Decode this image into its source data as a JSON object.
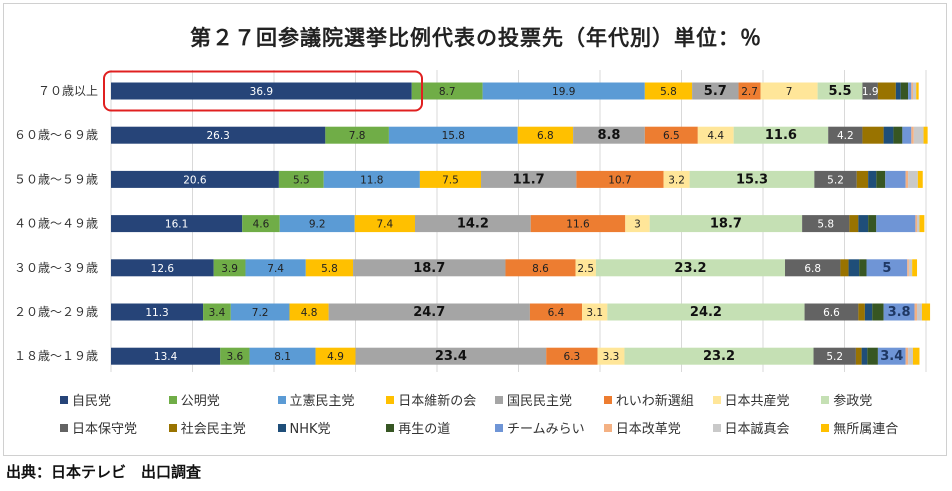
{
  "title": "第２７回参議院選挙比例代表の投票先（年代別）単位：％",
  "source": "出典：日本テレビ　出口調査",
  "colors": {
    "highlight": "#e02020",
    "grid": "#d9d9d9"
  },
  "chart_data": {
    "type": "bar",
    "orientation": "horizontal",
    "stacked": true,
    "title": "第２７回参議院選挙比例代表の投票先（年代別）単位：％",
    "xlim": [
      0,
      100
    ],
    "grid": true,
    "legend_position": "bottom",
    "highlighted_category": "７０歳以上",
    "categories": [
      "７０歳以上",
      "６０歳～６９歳",
      "５０歳～５９歳",
      "４０歳～４９歳",
      "３０歳～３９歳",
      "２０歳～２９歳",
      "１８歳～１９歳"
    ],
    "series": [
      {
        "name": "自民党",
        "color": "#264478",
        "label_color": "#ffffff",
        "values": [
          36.9,
          26.3,
          20.6,
          16.1,
          12.6,
          11.3,
          13.4
        ],
        "labels": [
          "36.9",
          "26.3",
          "20.6",
          "16.1",
          "12.6",
          "11.3",
          "13.4"
        ]
      },
      {
        "name": "公明党",
        "color": "#70ad47",
        "label_color": "#222222",
        "values": [
          8.7,
          7.8,
          5.5,
          4.6,
          3.9,
          3.4,
          3.6
        ],
        "labels": [
          "8.7",
          "7.8",
          "5.5",
          "4.6",
          "3.9",
          "3.4",
          "3.6"
        ]
      },
      {
        "name": "立憲民主党",
        "color": "#5b9bd5",
        "label_color": "#222222",
        "values": [
          19.9,
          15.8,
          11.8,
          9.2,
          7.4,
          7.2,
          8.1
        ],
        "labels": [
          "19.9",
          "15.8",
          "11.8",
          "9.2",
          "7.4",
          "7.2",
          "8.1"
        ]
      },
      {
        "name": "日本維新の会",
        "color": "#ffc000",
        "label_color": "#222222",
        "values": [
          5.8,
          6.8,
          7.5,
          7.4,
          5.8,
          4.8,
          4.9
        ],
        "labels": [
          "5.8",
          "6.8",
          "7.5",
          "7.4",
          "5.8",
          "4.8",
          "4.9"
        ]
      },
      {
        "name": "国民民主党",
        "color": "#a5a5a5",
        "label_color": "#111111",
        "bold": true,
        "values": [
          5.7,
          8.8,
          11.7,
          14.2,
          18.7,
          24.7,
          23.4
        ],
        "labels": [
          "5.7",
          "8.8",
          "11.7",
          "14.2",
          "18.7",
          "24.7",
          "23.4"
        ]
      },
      {
        "name": "れいわ新選組",
        "color": "#ed7d31",
        "label_color": "#222222",
        "values": [
          2.7,
          6.5,
          10.7,
          11.6,
          8.6,
          6.4,
          6.3
        ],
        "labels": [
          "2.7",
          "6.5",
          "10.7",
          "11.6",
          "8.6",
          "6.4",
          "6.3"
        ]
      },
      {
        "name": "日本共産党",
        "color": "#ffe699",
        "label_color": "#222222",
        "values": [
          7,
          4.4,
          3.2,
          3,
          2.5,
          3.1,
          3.3
        ],
        "labels": [
          "7",
          "4.4",
          "3.2",
          "3",
          "2.5",
          "3.1",
          "3.3"
        ]
      },
      {
        "name": "参政党",
        "color": "#c5e0b4",
        "label_color": "#111111",
        "bold": true,
        "values": [
          5.5,
          11.6,
          15.3,
          18.7,
          23.2,
          24.2,
          23.2
        ],
        "labels": [
          "5.5",
          "11.6",
          "15.3",
          "18.7",
          "23.2",
          "24.2",
          "23.2"
        ]
      },
      {
        "name": "日本保守党",
        "color": "#636363",
        "label_color": "#ffffff",
        "values": [
          1.9,
          4.2,
          5.2,
          5.8,
          6.8,
          6.6,
          5.2
        ],
        "labels": [
          "1.9",
          "4.2",
          "5.2",
          "5.8",
          "6.8",
          "6.6",
          "5.2"
        ]
      },
      {
        "name": "社会民主党",
        "color": "#997300",
        "label_color": "#ffffff",
        "values": [
          2.2,
          2.6,
          1.4,
          1.1,
          1.0,
          0.8,
          0.7
        ],
        "labels": [
          "",
          "",
          "",
          "",
          "",
          "",
          ""
        ]
      },
      {
        "name": "NHK党",
        "color": "#1f4e79",
        "label_color": "#ffffff",
        "values": [
          0.6,
          1.2,
          1.0,
          1.2,
          1.3,
          0.9,
          0.7
        ],
        "labels": [
          "",
          "",
          "",
          "",
          "",
          "",
          ""
        ]
      },
      {
        "name": "再生の道",
        "color": "#375623",
        "label_color": "#ffffff",
        "values": [
          0.9,
          1.1,
          1.1,
          1.0,
          0.9,
          1.4,
          1.3
        ],
        "labels": [
          "",
          "",
          "",
          "",
          "",
          "",
          ""
        ]
      },
      {
        "name": "チームみらい",
        "color": "#6f95d6",
        "label_color": "#1f3864",
        "bold": true,
        "values": [
          0.4,
          1.1,
          2.5,
          4.8,
          5,
          3.8,
          3.4
        ],
        "labels": [
          "",
          "",
          "",
          "",
          "5",
          "3.8",
          "3.4"
        ]
      },
      {
        "name": "日本改革党",
        "color": "#f4b183",
        "label_color": "#222222",
        "values": [
          0.2,
          0.3,
          0.3,
          0.2,
          0.2,
          0.3,
          0.3
        ],
        "labels": [
          "",
          "",
          "",
          "",
          "",
          "",
          ""
        ]
      },
      {
        "name": "日本誠真会",
        "color": "#c9c9c9",
        "label_color": "#222222",
        "values": [
          0.4,
          1.2,
          1.2,
          0.3,
          0.4,
          0.6,
          0.6
        ],
        "labels": [
          "",
          "",
          "",
          "",
          "",
          "",
          ""
        ]
      },
      {
        "name": "無所属連合",
        "color": "#ffc000",
        "label_color": "#222222",
        "values": [
          0.3,
          0.5,
          0.6,
          0.6,
          0.6,
          1.0,
          0.8
        ],
        "labels": [
          "",
          "",
          "",
          "",
          "",
          "",
          ""
        ]
      }
    ]
  }
}
